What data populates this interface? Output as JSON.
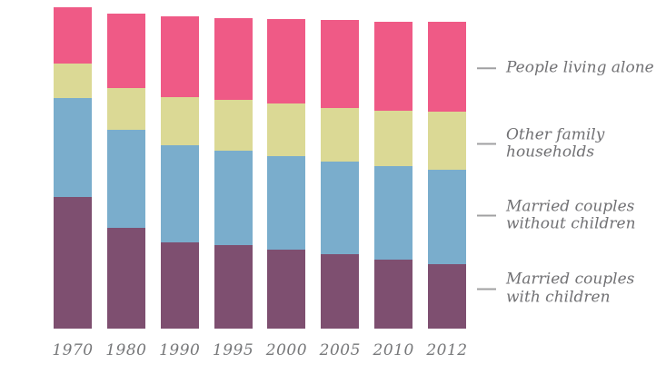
{
  "chart_data": {
    "type": "bar",
    "stacked": true,
    "title": "",
    "xlabel": "",
    "ylabel": "",
    "unit": "percent of households",
    "grid": false,
    "y_axis_visible": false,
    "legend_position": "right",
    "categories": [
      "1970",
      "1980",
      "1990",
      "1995",
      "2000",
      "2005",
      "2010",
      "2012"
    ],
    "series": [
      {
        "name": "Married couples with children",
        "color": "#7e4f70",
        "values": [
          40.3,
          30.9,
          26.3,
          25.5,
          24.1,
          22.9,
          21.0,
          19.6
        ]
      },
      {
        "name": "Married couples without children",
        "color": "#7aadcc",
        "values": [
          30.3,
          29.9,
          29.8,
          28.9,
          28.7,
          28.2,
          28.8,
          29.1
        ]
      },
      {
        "name": "Other family households",
        "color": "#dbd995",
        "values": [
          10.6,
          12.9,
          14.8,
          15.6,
          16.0,
          16.5,
          17.0,
          17.8
        ]
      },
      {
        "name": "People living alone",
        "color": "#ef5a86",
        "values": [
          17.1,
          22.7,
          24.6,
          25.0,
          25.8,
          26.9,
          27.2,
          27.5
        ]
      }
    ]
  },
  "legend": {
    "tick_color": "#a0a0a2",
    "text_color": "#717174",
    "items": [
      {
        "series": "People living alone",
        "label_lines": [
          "People living alone"
        ]
      },
      {
        "series": "Other family households",
        "label_lines": [
          "Other family",
          "households"
        ]
      },
      {
        "series": "Married couples without children",
        "label_lines": [
          "Married couples",
          "without children"
        ]
      },
      {
        "series": "Married couples with children",
        "label_lines": [
          "Married couples",
          "with children"
        ]
      }
    ]
  },
  "axis": {
    "x_label_color": "#77787a"
  }
}
